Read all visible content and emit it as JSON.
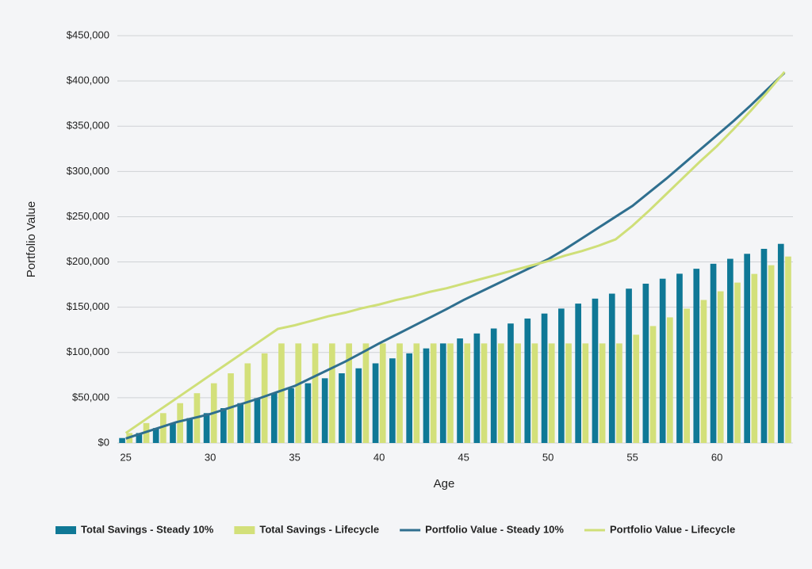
{
  "chart_data": {
    "type": "bar_line",
    "xlabel": "Age",
    "ylabel": "Portfolio Value",
    "x": [
      25,
      26,
      27,
      28,
      29,
      30,
      31,
      32,
      33,
      34,
      35,
      36,
      37,
      38,
      39,
      40,
      41,
      42,
      43,
      44,
      45,
      46,
      47,
      48,
      49,
      50,
      51,
      52,
      53,
      54,
      55,
      56,
      57,
      58,
      59,
      60,
      61,
      62,
      63,
      64
    ],
    "xlim": [
      24.5,
      64.5
    ],
    "xticks": [
      25,
      30,
      35,
      40,
      45,
      50,
      55,
      60
    ],
    "ylim": [
      0,
      450000
    ],
    "yticks": [
      {
        "value": 0,
        "label": "$0"
      },
      {
        "value": 50000,
        "label": "$50,000"
      },
      {
        "value": 100000,
        "label": "$100,000"
      },
      {
        "value": 150000,
        "label": "$150,000"
      },
      {
        "value": 200000,
        "label": "$200,000"
      },
      {
        "value": 250000,
        "label": "$250,000"
      },
      {
        "value": 300000,
        "label": "$300,000"
      },
      {
        "value": 350000,
        "label": "$350,000"
      },
      {
        "value": 400000,
        "label": "$400,000"
      },
      {
        "value": 450000,
        "label": "$450,000"
      }
    ],
    "grid": true,
    "legend": "bottom",
    "series": [
      {
        "name": "Total Savings - Steady 10%",
        "kind": "bar",
        "color": "#0f7896",
        "values": [
          5500,
          11000,
          16500,
          22000,
          27500,
          33000,
          38500,
          44000,
          49500,
          55000,
          60500,
          66000,
          71500,
          77000,
          82500,
          88000,
          93500,
          99000,
          104500,
          110000,
          115500,
          121000,
          126500,
          132000,
          137500,
          143000,
          148500,
          154000,
          159500,
          165000,
          170500,
          176000,
          181500,
          187000,
          192500,
          198000,
          203500,
          209000,
          214500,
          220000
        ]
      },
      {
        "name": "Total Savings - Lifecycle",
        "kind": "bar",
        "color": "#d3e07a",
        "values": [
          11000,
          22000,
          33000,
          44000,
          55000,
          66000,
          77000,
          88000,
          99000,
          110000,
          110000,
          110000,
          110000,
          110000,
          110000,
          110000,
          110000,
          110000,
          110000,
          110000,
          110000,
          110000,
          110000,
          110000,
          110000,
          110000,
          110000,
          110000,
          110000,
          110000,
          119600,
          129200,
          138800,
          148400,
          158000,
          167600,
          177200,
          186800,
          196400,
          206000
        ]
      },
      {
        "name": "Portfolio Value - Steady 10%",
        "kind": "line",
        "color": "#2f6f8f",
        "values": [
          5000,
          11000,
          17000,
          23000,
          27500,
          32000,
          38000,
          44000,
          50000,
          56500,
          63000,
          72000,
          81000,
          90000,
          100000,
          110000,
          119500,
          129000,
          138500,
          148000,
          158000,
          167000,
          176000,
          185000,
          194000,
          203000,
          214000,
          226000,
          238000,
          250000,
          262000,
          277000,
          292000,
          308000,
          324000,
          340000,
          356000,
          373000,
          391000,
          409000
        ]
      },
      {
        "name": "Portfolio Value - Lifecycle",
        "kind": "line",
        "color": "#cfdf78",
        "values": [
          11000,
          23800,
          36600,
          49300,
          62100,
          74900,
          87700,
          100400,
          113200,
          126000,
          130000,
          135000,
          140000,
          144000,
          149000,
          153000,
          158000,
          162000,
          167000,
          171000,
          176000,
          181000,
          186000,
          191000,
          196000,
          201000,
          207000,
          212000,
          218000,
          225000,
          240000,
          257000,
          275000,
          293000,
          311000,
          328000,
          347000,
          367000,
          388000,
          410000
        ]
      }
    ]
  }
}
